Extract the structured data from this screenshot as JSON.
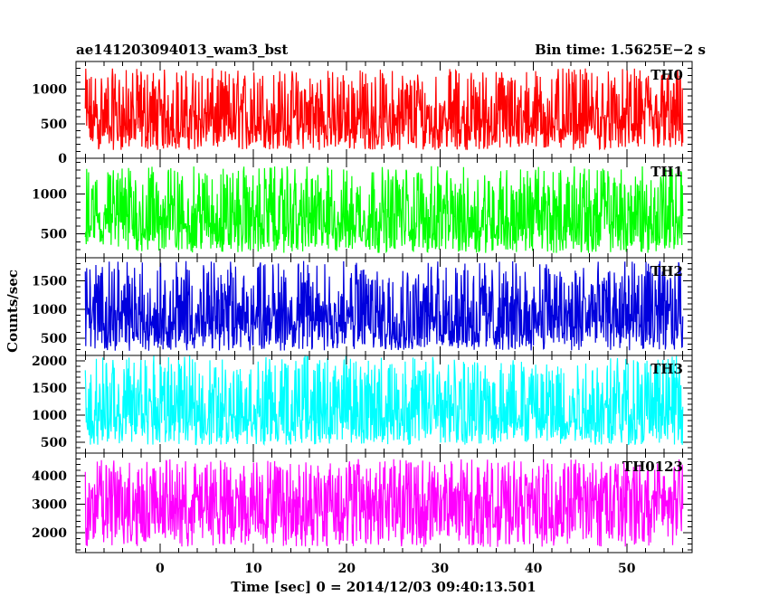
{
  "header": {
    "left_title": "ae141203094013_wam3_bst",
    "right_title": "Bin time: 1.5625E−2 s"
  },
  "ylabel": "Counts/sec",
  "xlabel": "Time [sec] 0 = 2014/12/03 09:40:13.501",
  "chart_data": [
    {
      "type": "line",
      "name": "TH0",
      "color": "#ff0000",
      "xlim": [
        -9,
        57
      ],
      "ylim": [
        0,
        1400
      ],
      "yticks_major": [
        0,
        500,
        1000
      ],
      "yticks_minor_step": 100,
      "x_range": [
        -8,
        56
      ],
      "y_mean": 560,
      "y_spread": [
        120,
        1300
      ]
    },
    {
      "type": "line",
      "name": "TH1",
      "color": "#00ff00",
      "xlim": [
        -9,
        57
      ],
      "ylim": [
        200,
        1450
      ],
      "yticks_major": [
        500,
        1000
      ],
      "yticks_minor_step": 100,
      "x_range": [
        -8,
        56
      ],
      "y_mean": 700,
      "y_spread": [
        260,
        1350
      ]
    },
    {
      "type": "line",
      "name": "TH2",
      "color": "#0000dd",
      "xlim": [
        -9,
        57
      ],
      "ylim": [
        200,
        1900
      ],
      "yticks_major": [
        500,
        1000,
        1500
      ],
      "yticks_minor_step": 100,
      "x_range": [
        -8,
        56
      ],
      "y_mean": 870,
      "y_spread": [
        280,
        1850
      ]
    },
    {
      "type": "line",
      "name": "TH3",
      "color": "#00ffff",
      "xlim": [
        -9,
        57
      ],
      "ylim": [
        300,
        2100
      ],
      "yticks_major": [
        500,
        1000,
        1500,
        2000
      ],
      "yticks_minor_step": 100,
      "x_range": [
        -8,
        56
      ],
      "y_mean": 1100,
      "y_spread": [
        450,
        2100
      ]
    },
    {
      "type": "line",
      "name": "TH0123",
      "color": "#ff00ff",
      "xlim": [
        -9,
        57
      ],
      "ylim": [
        1300,
        4800
      ],
      "yticks_major": [
        2000,
        3000,
        4000
      ],
      "yticks_minor_step": 200,
      "x_range": [
        -8,
        56
      ],
      "y_mean": 3100,
      "y_spread": [
        1500,
        4600
      ]
    }
  ],
  "x_axis": {
    "ticks_major": [
      0,
      10,
      20,
      30,
      40,
      50
    ],
    "ticks_minor_step": 2
  }
}
